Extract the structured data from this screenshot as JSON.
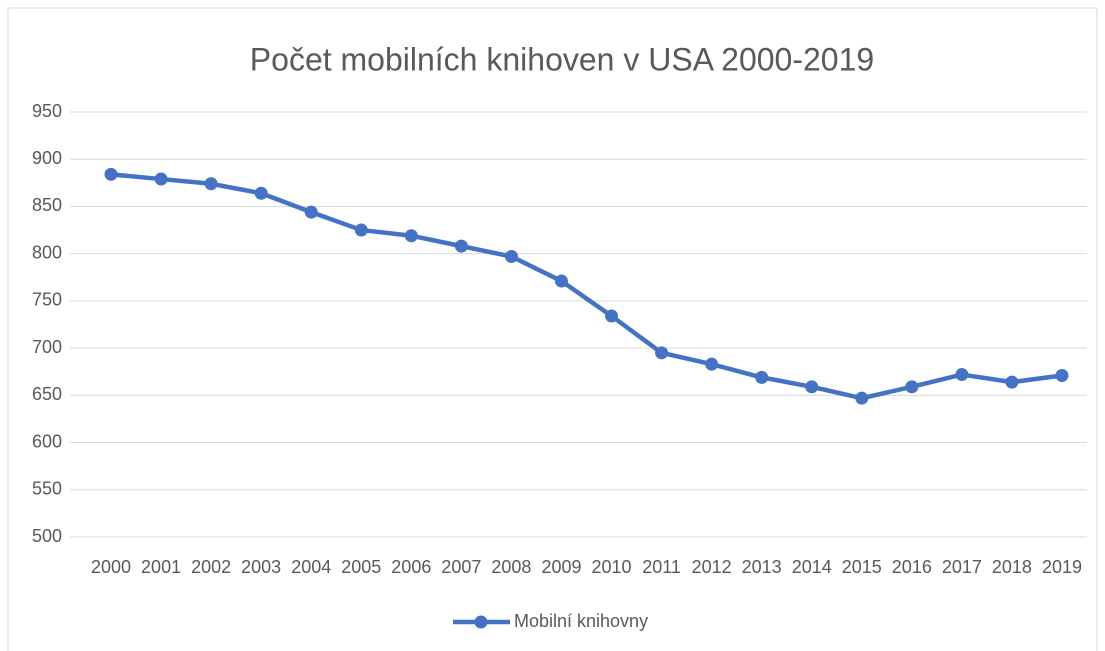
{
  "chart_data": {
    "type": "line",
    "title": "Počet mobilních knihoven v USA 2000-2019",
    "categories": [
      "2000",
      "2001",
      "2002",
      "2003",
      "2004",
      "2005",
      "2006",
      "2007",
      "2008",
      "2009",
      "2010",
      "2011",
      "2012",
      "2013",
      "2014",
      "2015",
      "2016",
      "2017",
      "2018",
      "2019"
    ],
    "series": [
      {
        "name": "Mobilní knihovny",
        "color": "#4472c4",
        "values": [
          884,
          879,
          874,
          864,
          844,
          825,
          819,
          808,
          797,
          771,
          734,
          695,
          683,
          669,
          659,
          647,
          659,
          672,
          664,
          671
        ]
      }
    ],
    "ylim": [
      500,
      950
    ],
    "yticks": [
      500,
      550,
      600,
      650,
      700,
      750,
      800,
      850,
      900,
      950
    ],
    "grid": true,
    "legend": "bottom"
  }
}
